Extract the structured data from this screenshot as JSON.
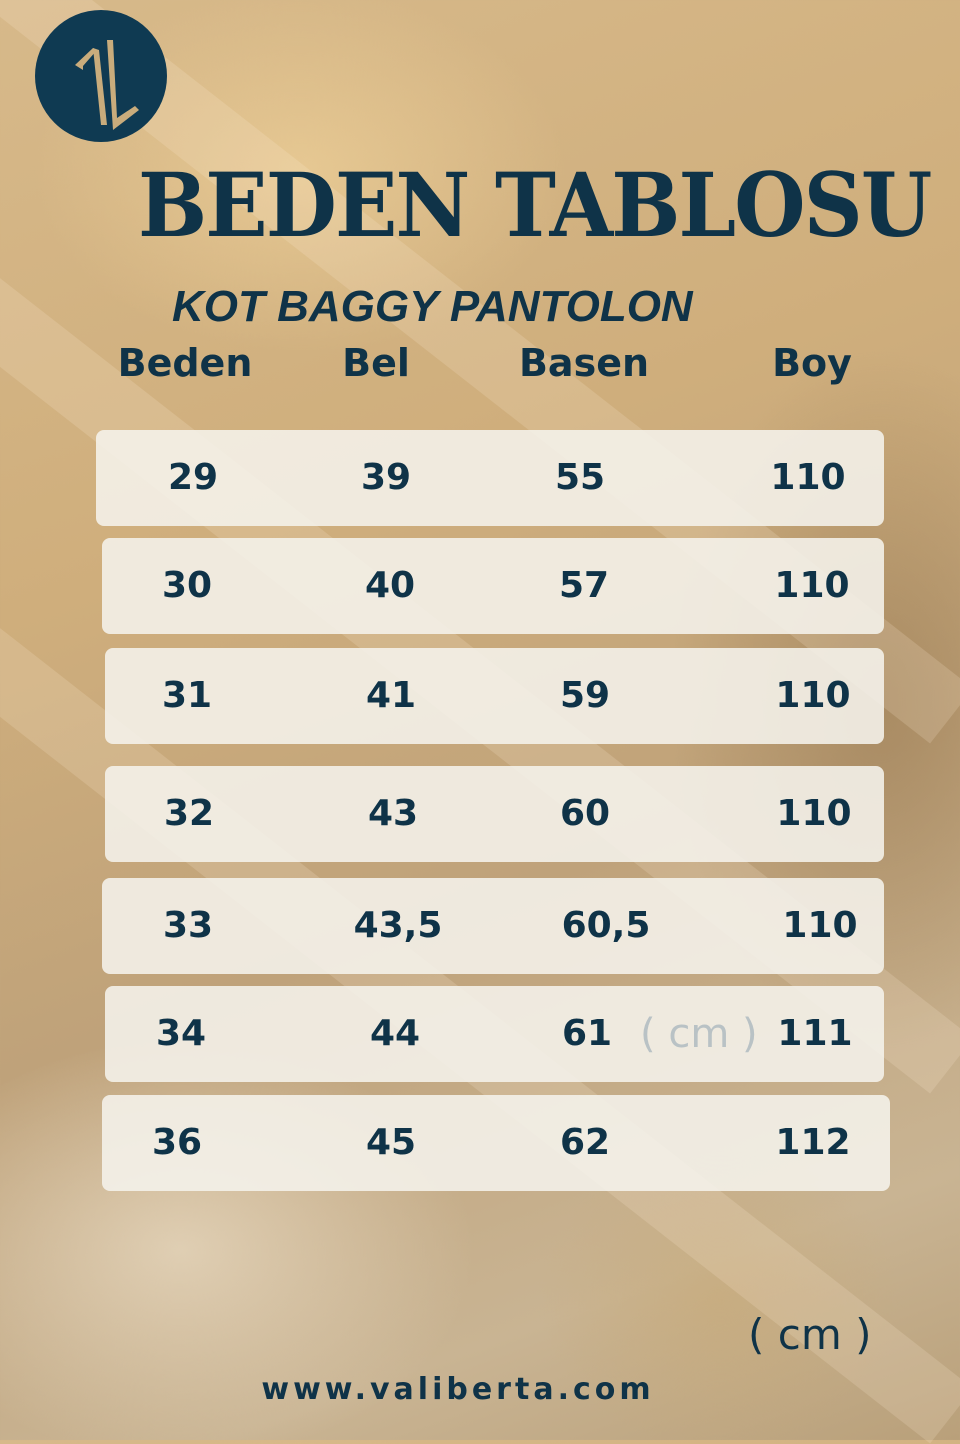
{
  "logo": {
    "text": "VL",
    "color": "#0f3a52",
    "accent": "#c9ac7c"
  },
  "title": "BEDEN TABLOSU",
  "subtitle": "KOT BAGGY PANTOLON",
  "columns": [
    "Beden",
    "Bel",
    "Basen",
    "Boy"
  ],
  "rows": [
    [
      "29",
      "39",
      "55",
      "110"
    ],
    [
      "30",
      "40",
      "57",
      "110"
    ],
    [
      "31",
      "41",
      "59",
      "110"
    ],
    [
      "32",
      "43",
      "60",
      "110"
    ],
    [
      "33",
      "43,5",
      "60,5",
      "110"
    ],
    [
      "34",
      "44",
      "61",
      "111"
    ],
    [
      "36",
      "45",
      "62",
      "112"
    ]
  ],
  "ghost_unit": "( cm )",
  "unit": "( cm )",
  "website": "www.valiberta.com",
  "colors": {
    "text": "#0f3348",
    "row_bg": "#f5f2ec",
    "background": "#cfae7c"
  }
}
